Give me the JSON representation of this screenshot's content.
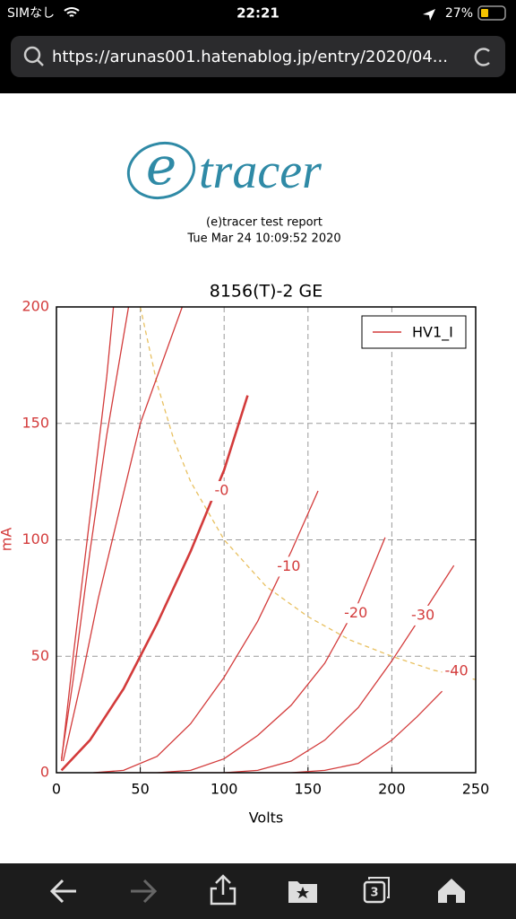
{
  "status_bar": {
    "carrier": "SIMなし",
    "time": "22:21",
    "battery": "27%"
  },
  "address_bar": {
    "url": "https://arunas001.hatenablog.jp/entry/2020/04..."
  },
  "report": {
    "logo_letter": "e",
    "logo_text": "tracer",
    "title": "(e)tracer test report",
    "timestamp": "Tue Mar 24 10:09:52 2020"
  },
  "chart_data": {
    "type": "line",
    "title": "8156(T)-2 GE",
    "x_label": "Volts",
    "y_label": "mA",
    "xlim": [
      0,
      250
    ],
    "xticks": [
      0,
      50,
      100,
      150,
      200,
      250
    ],
    "ylim": [
      0,
      200
    ],
    "yticks": [
      0,
      50,
      100,
      150,
      200
    ],
    "grid": true,
    "legend": "upper right",
    "series": [
      {
        "name": "HV1_I",
        "color": "#d33b3b",
        "curves": [
          {
            "x": [
              3,
              10,
              20,
              30,
              34
            ],
            "y": [
              5,
              50,
              110,
              170,
              200
            ],
            "width": 1.3
          },
          {
            "x": [
              3,
              10,
              20,
              30,
              43
            ],
            "y": [
              6,
              40,
              95,
              145,
              200
            ],
            "width": 1.3
          },
          {
            "x": [
              4,
              15,
              25,
              36,
              50,
              75
            ],
            "y": [
              5,
              40,
              75,
              108,
              150,
              200
            ],
            "width": 1.3
          },
          {
            "label": "-0",
            "x": [
              3,
              20,
              40,
              50,
              60,
              80,
              100,
              114
            ],
            "y": [
              1,
              14,
              36,
              50,
              64,
              95,
              130,
              162
            ],
            "width": 2.6
          },
          {
            "label": "-10",
            "x": [
              22,
              40,
              60,
              80,
              100,
              120,
              140,
              156
            ],
            "y": [
              0,
              1,
              7,
              21,
              41,
              65,
              95,
              121
            ],
            "width": 1.3
          },
          {
            "label": "-20",
            "x": [
              40,
              60,
              80,
              100,
              120,
              140,
              160,
              180,
              196
            ],
            "y": [
              0,
              0,
              1,
              6,
              16,
              29,
              47,
              73,
              101
            ],
            "width": 1.3
          },
          {
            "label": "-30",
            "x": [
              80,
              100,
              120,
              140,
              160,
              180,
              200,
              220,
              237
            ],
            "y": [
              0,
              0,
              1,
              5,
              14,
              28,
              48,
              70,
              89
            ],
            "width": 1.3
          },
          {
            "label": "-40",
            "x": [
              120,
              140,
              160,
              180,
              200,
              215,
              230
            ],
            "y": [
              0,
              0,
              1,
              4,
              14,
              24,
              35
            ],
            "width": 1.3
          }
        ]
      }
    ],
    "limit_curve": {
      "color": "#e8c060",
      "x": [
        50,
        60,
        70,
        80,
        100,
        125,
        150,
        175,
        200,
        225,
        250
      ],
      "y": [
        200,
        167,
        143,
        125,
        100,
        80,
        67,
        57,
        50,
        44,
        40
      ]
    }
  },
  "toolbar": {
    "tabs_count": "3"
  }
}
